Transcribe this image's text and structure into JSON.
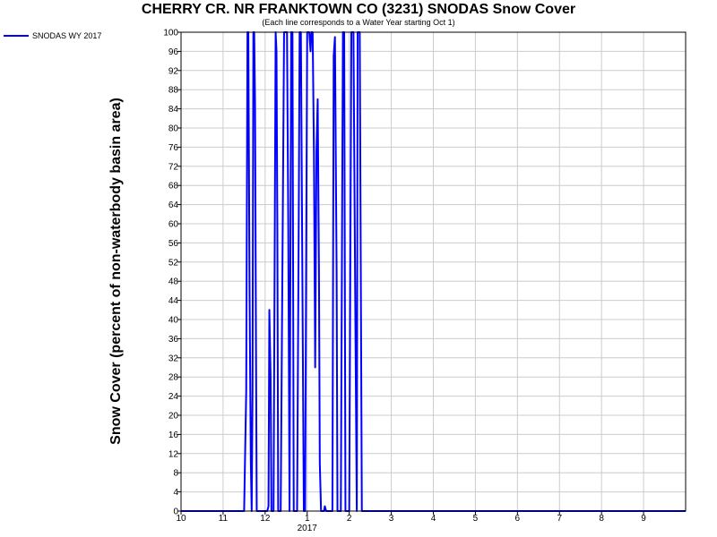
{
  "chart_data": {
    "type": "line",
    "title": "CHERRY CR. NR FRANKTOWN CO (3231) SNODAS Snow Cover",
    "subtitle": "(Each line corresponds to a Water Year starting Oct 1)",
    "ylabel": "Snow Cover (percent of non-waterbody basin area)",
    "xlabel": "",
    "ylim": [
      0,
      100
    ],
    "xlim": [
      0,
      12
    ],
    "y_ticks": [
      0,
      4,
      8,
      12,
      16,
      20,
      24,
      28,
      32,
      36,
      40,
      44,
      48,
      52,
      56,
      60,
      64,
      68,
      72,
      76,
      80,
      84,
      88,
      92,
      96,
      100
    ],
    "x_tick_labels": [
      "10",
      "11",
      "12",
      "1",
      "2",
      "3",
      "4",
      "5",
      "6",
      "7",
      "8",
      "9"
    ],
    "x_secondary_label": "2017",
    "grid": true,
    "legend_position": "top-left",
    "series": [
      {
        "name": "SNODAS WY 2017",
        "color": "#0000ff",
        "x": [
          0,
          1.5,
          1.55,
          1.58,
          1.6,
          1.63,
          1.66,
          1.68,
          1.7,
          1.72,
          1.74,
          1.76,
          1.78,
          1.8,
          1.82,
          1.85,
          1.9,
          2.05,
          2.08,
          2.1,
          2.13,
          2.15,
          2.2,
          2.25,
          2.27,
          2.29,
          2.31,
          2.33,
          2.37,
          2.42,
          2.45,
          2.52,
          2.55,
          2.58,
          2.62,
          2.65,
          2.68,
          2.72,
          2.76,
          2.8,
          2.82,
          2.85,
          2.92,
          2.95,
          3.0,
          3.05,
          3.08,
          3.1,
          3.13,
          3.16,
          3.19,
          3.22,
          3.25,
          3.28,
          3.3,
          3.33,
          3.36,
          3.4,
          3.42,
          3.45,
          3.5,
          3.55,
          3.6,
          3.63,
          3.66,
          3.7,
          3.72,
          3.8,
          3.85,
          3.88,
          3.91,
          4.0,
          4.05,
          4.1,
          4.15,
          4.18,
          4.2,
          4.25,
          4.3,
          4.35,
          4.38,
          4.42,
          4.5,
          4.6,
          4.85,
          5.7,
          12
        ],
        "y": [
          0,
          0,
          25,
          100,
          100,
          45,
          10,
          0,
          25,
          100,
          100,
          85,
          40,
          0,
          0,
          0,
          0,
          0,
          1,
          42,
          28,
          0,
          0,
          100,
          96,
          60,
          0,
          0,
          0,
          62,
          100,
          100,
          60,
          0,
          100,
          100,
          0,
          0,
          0,
          62,
          100,
          100,
          0,
          0,
          100,
          100,
          96,
          100,
          100,
          75,
          30,
          75,
          86,
          50,
          10,
          0,
          0,
          0,
          1,
          0,
          0,
          0,
          0,
          95,
          99,
          50,
          0,
          0,
          100,
          100,
          0,
          0,
          100,
          100,
          35,
          0,
          100,
          100,
          0,
          0,
          0,
          0,
          0,
          0,
          0,
          0,
          0
        ]
      }
    ]
  }
}
